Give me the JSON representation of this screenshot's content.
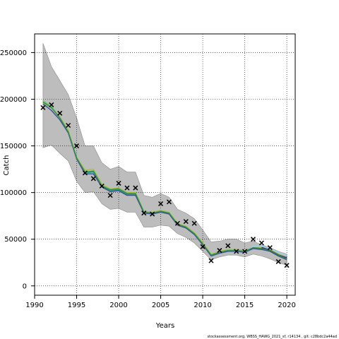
{
  "chart_data": {
    "type": "line",
    "xlabel": "Years",
    "ylabel": "Catch",
    "xlim": [
      1990,
      2021
    ],
    "ylim": [
      -10000,
      270000
    ],
    "x_ticks": [
      1990,
      1995,
      2000,
      2005,
      2010,
      2015,
      2020
    ],
    "y_ticks": [
      0,
      50000,
      100000,
      150000,
      200000,
      250000
    ],
    "grid": true,
    "footer": "stockassessment.org, WBSS_HAWG_2021_sf, r14134 , git: c28bdc2a44ad",
    "colors": {
      "band": "#bdbdbd",
      "band_edge": "#8c8c8c",
      "lines": [
        "#1f9e89",
        "#6ece58",
        "#a6c14a",
        "#3b528b",
        "#9fd4e3",
        "#482878",
        "#2e8b57"
      ],
      "observed": "#000000"
    },
    "years": [
      1991,
      1992,
      1993,
      1994,
      1995,
      1996,
      1997,
      1998,
      1999,
      2000,
      2001,
      2002,
      2003,
      2004,
      2005,
      2006,
      2007,
      2008,
      2009,
      2010,
      2011,
      2012,
      2013,
      2014,
      2015,
      2016,
      2017,
      2018,
      2019,
      2020
    ],
    "band_upper": [
      260000,
      235000,
      220000,
      205000,
      180000,
      150000,
      150000,
      132000,
      125000,
      128000,
      122000,
      122000,
      97000,
      95000,
      99000,
      95000,
      82000,
      78000,
      72000,
      60000,
      47000,
      48000,
      50000,
      50000,
      46000,
      48000,
      44000,
      41000,
      37000,
      34000
    ],
    "band_lower": [
      148000,
      151000,
      142000,
      134000,
      112000,
      100000,
      101000,
      88000,
      82000,
      83000,
      79000,
      79000,
      63000,
      63000,
      65000,
      64000,
      56000,
      52000,
      46000,
      37000,
      28000,
      31000,
      33000,
      33000,
      31000,
      34000,
      32000,
      29000,
      25000,
      22000
    ],
    "observed": [
      191000,
      194000,
      185000,
      172000,
      150000,
      121000,
      115000,
      107000,
      97000,
      110000,
      105000,
      105000,
      78000,
      77000,
      88000,
      90000,
      67000,
      69000,
      67000,
      42000,
      27000,
      38000,
      43000,
      37000,
      37000,
      50000,
      46000,
      41000,
      26000,
      22000
    ],
    "series": [
      {
        "color": "#1f9e89",
        "start_year": 1991,
        "values": [
          198000,
          192000,
          181000,
          166000,
          137000,
          121000,
          122000,
          107000,
          102000,
          103000,
          98000,
          98000,
          79000,
          78000,
          80000,
          78000,
          66000,
          63000,
          56000,
          45000,
          33000,
          36000,
          38000,
          38000,
          37000,
          41000,
          40000,
          38000,
          33000,
          29000
        ]
      },
      {
        "color": "#6ece58",
        "start_year": 1991,
        "values": [
          198000,
          192000,
          181000,
          166000,
          137000,
          122000,
          123000,
          108000,
          103000,
          104000,
          99000,
          99000,
          80000,
          79000,
          80000,
          78000,
          66000,
          63000,
          56000,
          45000,
          33000,
          36000,
          38000,
          38000,
          37000,
          41000,
          40000,
          38000,
          33000,
          29000
        ]
      },
      {
        "color": "#a6c14a",
        "start_year": 1991,
        "values": [
          196000,
          191000,
          181000,
          167000,
          138000,
          124000,
          125000,
          109000,
          104000,
          105000,
          100000,
          100000,
          80000,
          79000,
          81000,
          79000,
          67000,
          64000,
          57000,
          46000,
          34000,
          37000,
          39000,
          39000,
          38000,
          42000,
          41000,
          39000,
          34000,
          30000
        ]
      },
      {
        "color": "#3b528b",
        "start_year": 1991,
        "values": [
          195000,
          188000,
          178000,
          164000,
          136000,
          120000,
          120000,
          106000,
          101000,
          102000,
          97000,
          97000,
          78000,
          77000,
          79000,
          77000,
          65000,
          62000,
          55000,
          44000,
          32000,
          35000,
          37000,
          37000,
          36000,
          40000,
          39000,
          37000,
          32000,
          28000
        ]
      },
      {
        "color": "#9fd4e3",
        "start_year": 2011,
        "values": [
          33000,
          36000,
          38000,
          38000,
          37000,
          42000,
          43000,
          40000,
          36000,
          33000
        ]
      },
      {
        "color": "#482878",
        "start_year": 2017,
        "values": [
          41000,
          38000,
          33000,
          30000
        ]
      },
      {
        "color": "#2e8b57",
        "start_year": 1991,
        "values": [
          197000,
          191000,
          180000,
          165000,
          137000,
          122000,
          123000,
          107000,
          103000,
          104000,
          99000,
          99000,
          79000,
          78000,
          80000,
          78000,
          66000,
          63000,
          56000,
          45000,
          33000,
          36000,
          38000,
          38000,
          37000,
          41000,
          40000,
          38000,
          33000,
          29000
        ]
      }
    ]
  }
}
